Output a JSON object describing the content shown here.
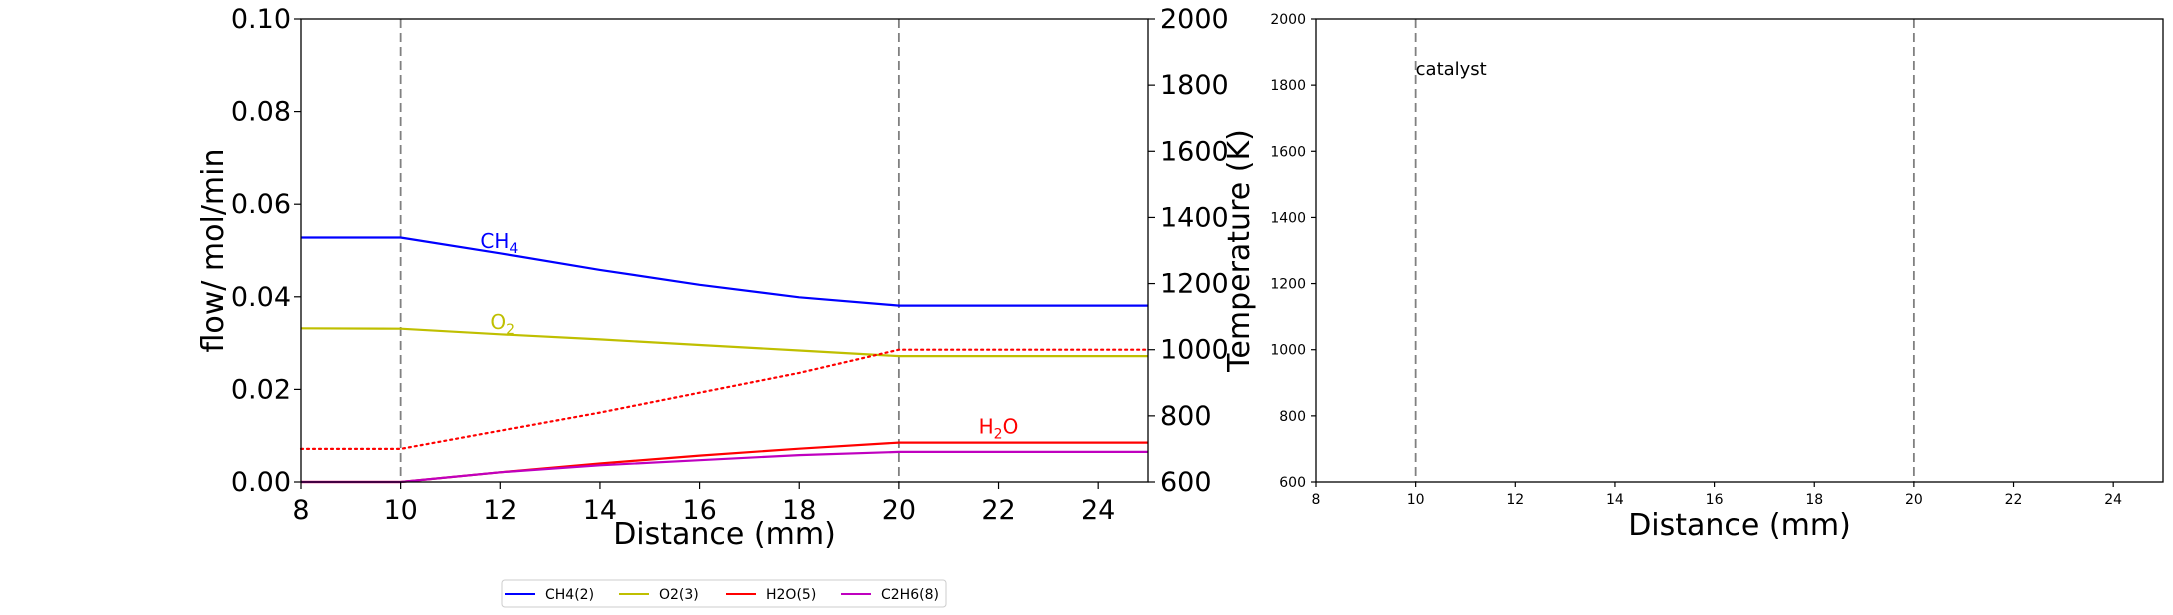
{
  "chart_data": [
    {
      "type": "line",
      "xlabel": "Distance (mm)",
      "ylabel": "flow/ mol/min",
      "ylabel_right": "Temperature (K)",
      "xlim": [
        8,
        25
      ],
      "ylim": [
        0,
        0.1
      ],
      "ylim_right": [
        600,
        2000
      ],
      "x_ticks": [
        "8",
        "10",
        "12",
        "14",
        "16",
        "18",
        "20",
        "22",
        "24"
      ],
      "y_ticks": [
        "0.00",
        "0.02",
        "0.04",
        "0.06",
        "0.08",
        "0.10"
      ],
      "y_ticks_right": [
        "600",
        "800",
        "1000",
        "1200",
        "1400",
        "1600",
        "1800",
        "2000"
      ],
      "vlines": [
        10,
        20
      ],
      "series": [
        {
          "name": "CH4(2)",
          "color": "#0000ff",
          "x": [
            8,
            10,
            12,
            14,
            16,
            18,
            20,
            25
          ],
          "y": [
            0.0528,
            0.0528,
            0.0494,
            0.0458,
            0.0426,
            0.0399,
            0.0381,
            0.0381
          ]
        },
        {
          "name": "O2(3)",
          "color": "#bfbf00",
          "x": [
            8,
            10,
            12,
            14,
            16,
            18,
            20,
            25
          ],
          "y": [
            0.0332,
            0.0331,
            0.0319,
            0.0308,
            0.0296,
            0.0284,
            0.0272,
            0.0272
          ]
        },
        {
          "name": "H2O(5)",
          "color": "#ff0000",
          "x": [
            8,
            10,
            12,
            14,
            16,
            18,
            20,
            25
          ],
          "y": [
            0.0,
            0.0,
            0.0021,
            0.004,
            0.0057,
            0.0072,
            0.0085,
            0.0085
          ]
        },
        {
          "name": "C2H6(8)",
          "color": "#bf00bf",
          "x": [
            8,
            10,
            12,
            14,
            16,
            18,
            20,
            25
          ],
          "y": [
            0.0,
            0.0,
            0.0021,
            0.0036,
            0.0047,
            0.0058,
            0.0065,
            0.0065
          ]
        }
      ],
      "temperature": {
        "color": "#ff0000",
        "style": "dotted",
        "x": [
          8,
          10,
          12,
          14,
          16,
          18,
          20,
          25
        ],
        "y": [
          700,
          700,
          755,
          810,
          870,
          930,
          1000,
          1000
        ]
      },
      "annotations": [
        {
          "base": "CH",
          "sub": "4",
          "x": 11.6,
          "y": 0.0505,
          "color": "#0000ff"
        },
        {
          "base": "O",
          "sub": "2",
          "x": 11.8,
          "y": 0.033,
          "color": "#bfbf00"
        },
        {
          "base": "H",
          "sub": "2",
          "tail": "O",
          "x": 21.6,
          "y": 0.0105,
          "color": "#ff0000"
        }
      ],
      "legend": {
        "placement": "bottom-center",
        "items": [
          "CH4(2)",
          "O2(3)",
          "H2O(5)",
          "C2H6(8)"
        ]
      }
    },
    {
      "type": "line",
      "xlabel": "Distance (mm)",
      "xlim": [
        8,
        25
      ],
      "ylim": [
        600,
        2000
      ],
      "x_ticks": [
        "8",
        "10",
        "12",
        "14",
        "16",
        "18",
        "20",
        "22",
        "24"
      ],
      "y_ticks": [
        "600",
        "800",
        "1000",
        "1200",
        "1400",
        "1600",
        "1800",
        "2000"
      ],
      "vlines": [
        10,
        20
      ],
      "annotations": [
        {
          "text": "catalyst",
          "x": 10,
          "y": 1830
        }
      ]
    }
  ],
  "colors": {
    "vline": "#808080",
    "axis": "#000000"
  }
}
